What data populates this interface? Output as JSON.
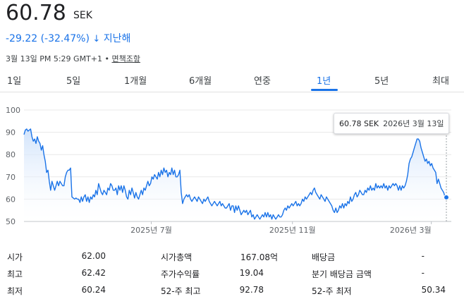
{
  "header": {
    "price": "60.78",
    "currency": "SEK",
    "change": "-29.22 (-32.47%)",
    "arrow": "↓",
    "period": "지난해",
    "timestamp": "3월 13일 PM 5:29 GMT+1",
    "separator": "•",
    "disclaimer": "면책조항"
  },
  "tabs": [
    {
      "label": "1일"
    },
    {
      "label": "5일"
    },
    {
      "label": "1개월"
    },
    {
      "label": "6개월"
    },
    {
      "label": "연중"
    },
    {
      "label": "1년"
    },
    {
      "label": "5년"
    },
    {
      "label": "최대"
    }
  ],
  "active_tab": 5,
  "tooltip": {
    "price": "60.78 SEK",
    "date": "2026년 3월 13일"
  },
  "colors": {
    "line": "#1a73e8",
    "fill_top": "#cfe2fb",
    "grid": "#e8e8e8"
  },
  "chart_data": {
    "type": "area",
    "y_ticks": [
      "100",
      "90",
      "80",
      "70",
      "60",
      "50"
    ],
    "ylim": [
      50,
      100
    ],
    "x_ticks": [
      {
        "label": "2025년 7월",
        "day": 110
      },
      {
        "label": "2025년 11월",
        "day": 232
      },
      {
        "label": "2026년 3월",
        "day": 352
      }
    ],
    "xlim_days": [
      0,
      365
    ],
    "values": [
      89,
      91,
      91.5,
      90.5,
      91,
      91.5,
      88,
      86,
      87,
      85,
      88,
      86,
      85,
      82,
      84,
      80,
      77,
      72,
      73,
      68,
      64,
      68,
      66,
      64,
      66,
      68,
      66,
      68,
      67,
      66,
      66,
      70,
      72,
      73,
      73,
      74,
      61,
      60.5,
      60,
      60.5,
      60,
      60,
      58.5,
      61,
      59,
      61,
      62,
      59,
      61,
      58.5,
      61,
      60,
      62,
      61,
      64,
      62,
      67,
      65,
      63,
      62,
      64,
      63,
      62,
      65,
      64,
      67,
      66,
      64,
      64,
      65,
      62,
      66,
      64,
      66,
      63,
      66,
      64,
      61,
      60,
      64,
      62,
      65,
      63,
      60.5,
      63,
      61,
      60,
      62,
      64,
      62,
      65,
      64,
      66,
      68,
      66,
      67,
      70,
      69,
      71,
      70,
      69,
      72,
      70,
      73,
      71,
      74,
      72,
      73,
      70,
      72,
      71,
      74,
      71,
      73,
      70,
      70,
      71,
      73,
      63,
      58,
      60,
      61,
      62,
      61,
      62,
      60,
      59,
      60,
      61,
      60,
      59,
      61,
      60,
      59,
      58,
      60,
      59,
      60,
      61,
      59,
      58,
      57,
      58,
      59,
      58,
      57,
      58,
      59,
      57,
      58,
      57,
      56,
      56,
      57,
      58,
      55,
      57,
      57,
      54,
      57,
      55,
      57,
      55,
      53,
      54,
      55,
      54,
      55,
      53,
      54,
      55,
      52,
      53,
      51,
      52,
      53,
      52,
      51,
      52,
      53,
      52,
      54,
      52,
      54,
      52,
      53,
      51,
      53,
      52,
      51,
      52,
      53,
      52,
      52,
      53,
      55,
      56,
      55,
      57,
      56,
      57,
      58,
      57,
      58,
      59,
      57,
      58,
      57,
      58,
      60,
      59,
      61,
      60,
      61,
      62,
      63,
      62,
      64,
      65,
      63,
      62,
      61,
      60,
      62,
      61,
      60,
      59,
      61,
      60,
      59,
      58,
      57,
      55,
      54,
      56,
      54,
      55,
      57,
      56,
      58,
      56,
      58,
      57,
      59,
      58,
      61,
      59,
      60,
      62,
      63,
      61,
      62,
      64,
      63,
      62,
      62,
      64,
      63,
      65,
      64,
      66,
      64,
      65,
      64,
      67,
      65,
      66,
      65,
      66,
      65,
      67,
      65,
      66,
      64,
      66,
      65,
      66,
      67,
      66,
      67,
      66,
      64,
      66,
      64,
      66,
      65,
      66,
      68,
      71,
      76,
      78,
      79,
      81,
      83,
      85,
      87,
      87,
      86,
      83,
      81,
      79,
      77,
      78,
      76,
      77,
      75,
      76,
      74,
      73,
      72,
      67,
      69,
      67,
      65,
      64,
      63,
      61,
      60.78
    ]
  },
  "stats": [
    {
      "label": "시가",
      "value": "62.00"
    },
    {
      "label": "최고",
      "value": "62.42"
    },
    {
      "label": "최저",
      "value": "60.24"
    },
    {
      "label": "시가총액",
      "value": "167.08억"
    },
    {
      "label": "주가수익률",
      "value": "19.04"
    },
    {
      "label": "52-주 최고",
      "value": "92.78"
    },
    {
      "label": "배당금",
      "value": "-"
    },
    {
      "label": "분기 배당금 금액",
      "value": "-"
    },
    {
      "label": "52-주 최저",
      "value": "50.34"
    }
  ]
}
